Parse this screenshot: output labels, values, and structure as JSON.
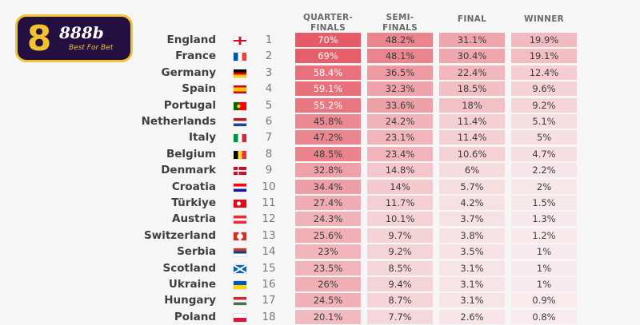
{
  "logo": {
    "brand": "888b",
    "tagline": "Best For Bet",
    "mark": "8"
  },
  "headers": {
    "quarter_finals": "QUARTER-\nFINALS",
    "semi_finals": "SEMI-\nFINALS",
    "final": "FINAL",
    "winner": "WINNER"
  },
  "rows": [
    {
      "country": "England",
      "rank": "1",
      "quarter_finals": "70%",
      "semi_finals": "48.2%",
      "final": "31.1%",
      "winner": "19.9%"
    },
    {
      "country": "France",
      "rank": "2",
      "quarter_finals": "69%",
      "semi_finals": "48.1%",
      "final": "30.4%",
      "winner": "19.1%"
    },
    {
      "country": "Germany",
      "rank": "3",
      "quarter_finals": "58.4%",
      "semi_finals": "36.5%",
      "final": "22.4%",
      "winner": "12.4%"
    },
    {
      "country": "Spain",
      "rank": "4",
      "quarter_finals": "59.1%",
      "semi_finals": "32.3%",
      "final": "18.5%",
      "winner": "9.6%"
    },
    {
      "country": "Portugal",
      "rank": "5",
      "quarter_finals": "55.2%",
      "semi_finals": "33.6%",
      "final": "18%",
      "winner": "9.2%"
    },
    {
      "country": "Netherlands",
      "rank": "6",
      "quarter_finals": "45.8%",
      "semi_finals": "24.2%",
      "final": "11.4%",
      "winner": "5.1%"
    },
    {
      "country": "Italy",
      "rank": "7",
      "quarter_finals": "47.2%",
      "semi_finals": "23.1%",
      "final": "11.4%",
      "winner": "5%"
    },
    {
      "country": "Belgium",
      "rank": "8",
      "quarter_finals": "48.5%",
      "semi_finals": "23.4%",
      "final": "10.6%",
      "winner": "4.7%"
    },
    {
      "country": "Denmark",
      "rank": "9",
      "quarter_finals": "32.8%",
      "semi_finals": "14.8%",
      "final": "6%",
      "winner": "2.2%"
    },
    {
      "country": "Croatia",
      "rank": "10",
      "quarter_finals": "34.4%",
      "semi_finals": "14%",
      "final": "5.7%",
      "winner": "2%"
    },
    {
      "country": "Türkiye",
      "rank": "11",
      "quarter_finals": "27.4%",
      "semi_finals": "11.7%",
      "final": "4.2%",
      "winner": "1.5%"
    },
    {
      "country": "Austria",
      "rank": "12",
      "quarter_finals": "24.3%",
      "semi_finals": "10.1%",
      "final": "3.7%",
      "winner": "1.3%"
    },
    {
      "country": "Switzerland",
      "rank": "13",
      "quarter_finals": "25.6%",
      "semi_finals": "9.7%",
      "final": "3.8%",
      "winner": "1.2%"
    },
    {
      "country": "Serbia",
      "rank": "14",
      "quarter_finals": "23%",
      "semi_finals": "9.2%",
      "final": "3.5%",
      "winner": "1%"
    },
    {
      "country": "Scotland",
      "rank": "15",
      "quarter_finals": "23.5%",
      "semi_finals": "8.5%",
      "final": "3.1%",
      "winner": "1%"
    },
    {
      "country": "Ukraine",
      "rank": "16",
      "quarter_finals": "26%",
      "semi_finals": "9.4%",
      "final": "3.1%",
      "winner": "1%"
    },
    {
      "country": "Hungary",
      "rank": "17",
      "quarter_finals": "24.5%",
      "semi_finals": "8.7%",
      "final": "3.1%",
      "winner": "0.9%"
    },
    {
      "country": "Poland",
      "rank": "18",
      "quarter_finals": "20.1%",
      "semi_finals": "7.7%",
      "final": "2.6%",
      "winner": "0.8%"
    }
  ]
}
